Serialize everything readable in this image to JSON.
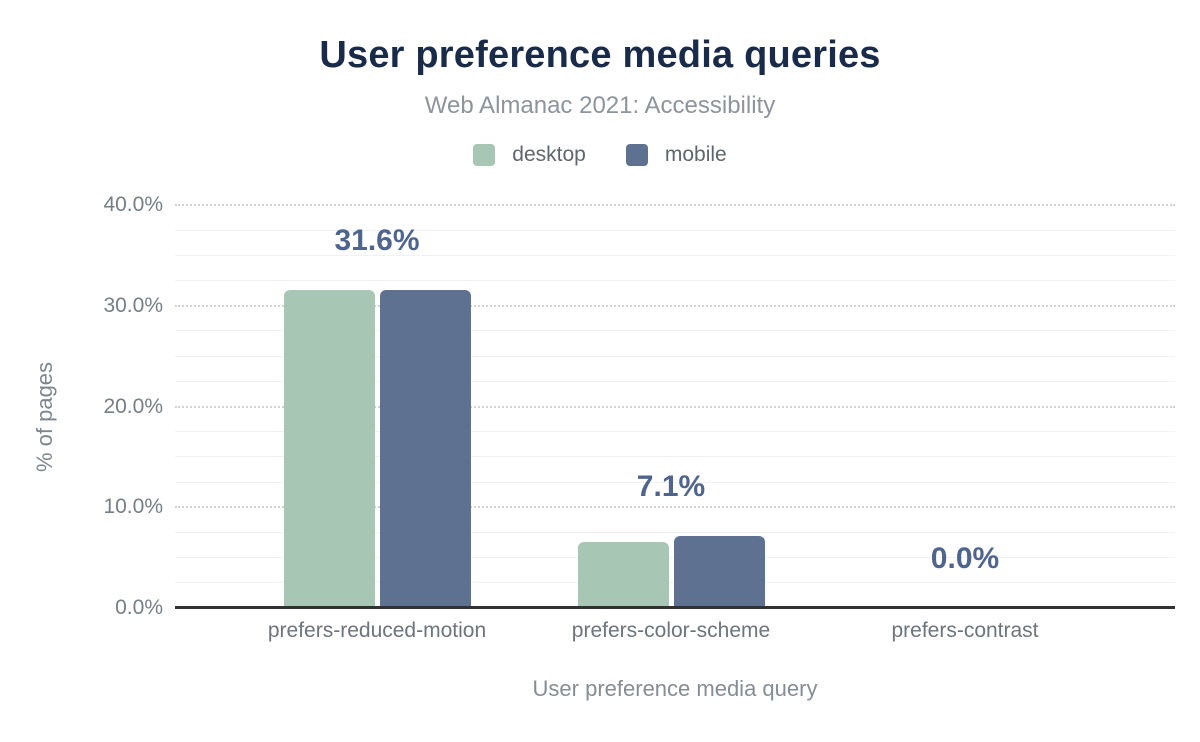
{
  "header": {
    "title": "User preference media queries",
    "subtitle": "Web Almanac 2021: Accessibility"
  },
  "chart_data": {
    "type": "bar",
    "title": "User preference media queries",
    "subtitle": "Web Almanac 2021: Accessibility",
    "categories": [
      "prefers-reduced-motion",
      "prefers-color-scheme",
      "prefers-contrast"
    ],
    "series": [
      {
        "name": "desktop",
        "color": "#a8c6b4",
        "values": [
          31.6,
          6.6,
          0.0
        ]
      },
      {
        "name": "mobile",
        "color": "#5f7190",
        "values": [
          31.6,
          7.1,
          0.0
        ]
      }
    ],
    "annotations": [
      "31.6%",
      "7.1%",
      "0.0%"
    ],
    "xlabel": "User preference media query",
    "ylabel": "% of pages",
    "ylim": [
      0,
      40
    ],
    "yticks": {
      "values": [
        0,
        10,
        20,
        30,
        40
      ],
      "labels": [
        "0.0%",
        "10.0%",
        "20.0%",
        "30.0%",
        "40.0%"
      ]
    },
    "grid": "horizontal: dotted major every 10%, faint minor every 2.5%",
    "legend_position": "top",
    "colors": {
      "title": "#1a2b4a",
      "subtitle": "#8d949b",
      "annotation": "#4f658e",
      "axis_line": "#313131",
      "major_grid": "#ced2d6",
      "minor_grid": "#f1f2f4"
    }
  }
}
